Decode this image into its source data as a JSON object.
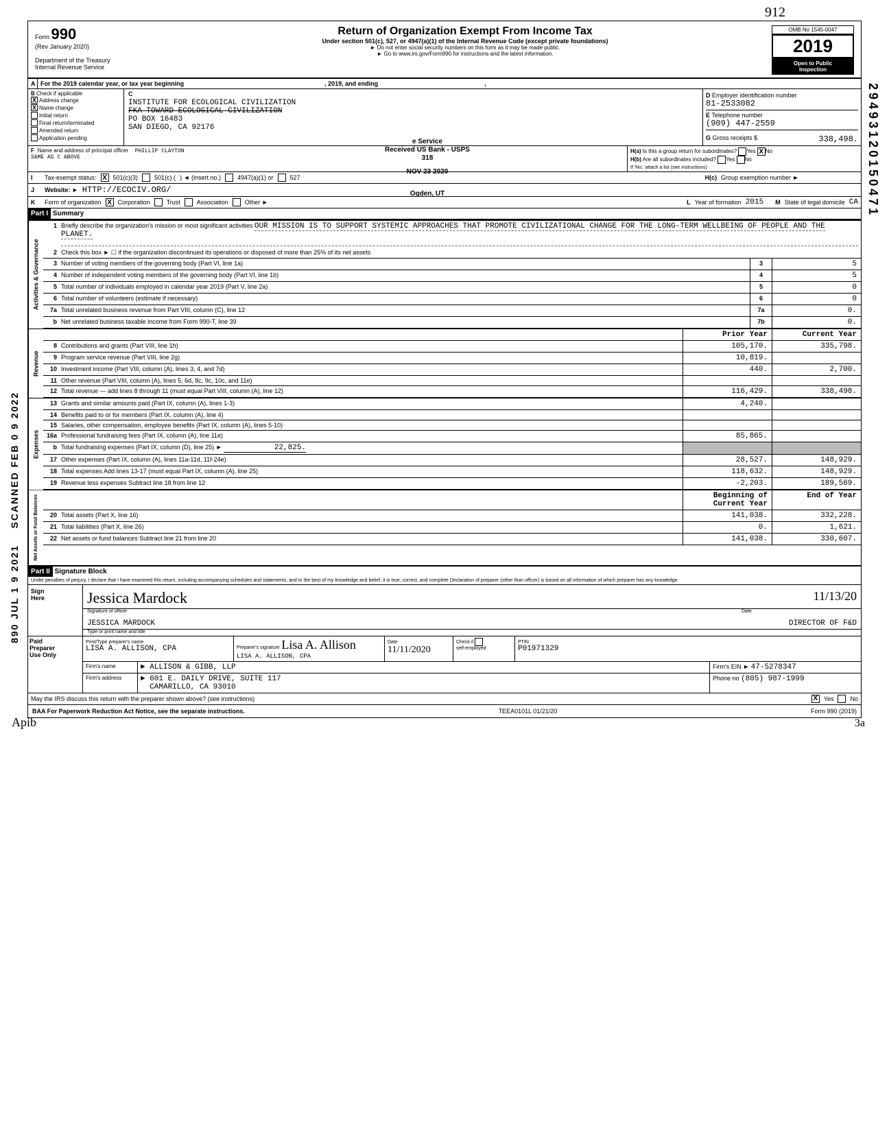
{
  "margins": {
    "side_stamp": "SCANNED FEB 0 9 2022",
    "side_stamp2": "890 JUL 1 9 2021",
    "side_num": "29493120150471",
    "top_hand": "912",
    "bottom_scribble": "Apib",
    "page_num": "3a"
  },
  "header": {
    "form_prefix": "Form",
    "form_number": "990",
    "rev": "(Rev January 2020)",
    "dept": "Department of the Treasury",
    "irs": "Internal Revenue Service",
    "title": "Return of Organization Exempt From Income Tax",
    "subtitle": "Under section 501(c), 527, or 4947(a)(1) of the Internal Revenue Code (except private foundations)",
    "note1": "► Do not enter social security numbers on this form as it may be made public.",
    "note2": "► Go to www.irs.gov/Form990 for instructions and the latest information.",
    "omb": "OMB No 1545-0047",
    "year": "2019",
    "public1": "Open to Public",
    "public2": "Inspection"
  },
  "row_a": {
    "label": "A",
    "text": "For the 2019 calendar year, or tax year beginning",
    "mid": ", 2019, and ending",
    "end": ","
  },
  "stamp": {
    "l1": "e Service",
    "l2": "Received US Bank - USPS",
    "l3": "318",
    "l4": "NOV 23 2020",
    "l5": "Ogden, UT"
  },
  "col_b": {
    "label": "B",
    "title": "Check if applicable",
    "opts": [
      {
        "label": "Address change",
        "checked": "X"
      },
      {
        "label": "Name change",
        "checked": "X"
      },
      {
        "label": "Initial return",
        "checked": ""
      },
      {
        "label": "Final return/terminated",
        "checked": ""
      },
      {
        "label": "Amended return",
        "checked": ""
      },
      {
        "label": "Application pending",
        "checked": ""
      }
    ]
  },
  "col_c": {
    "label": "C",
    "name": "INSTITUTE FOR ECOLOGICAL CIVILIZATION",
    "fka": "FKA TOWARD ECOLOGICAL CIVILIZATION",
    "addr1": "PO BOX 16483",
    "city": "SAN DIEGO, CA 92176"
  },
  "col_d": {
    "label": "D",
    "title": "Employer identification number",
    "value": "81-2533082"
  },
  "col_e": {
    "label": "E",
    "title": "Telephone number",
    "value": "(909) 447-2559"
  },
  "col_g": {
    "label": "G",
    "title": "Gross receipts $",
    "value": "338,498."
  },
  "row_f": {
    "label": "F",
    "title": "Name and address of principal officer",
    "name": "PHILLIP CLAYTON",
    "addr": "SAME AS C ABOVE"
  },
  "row_h": {
    "a_label": "H(a)",
    "a_text": "Is this a group return for subordinates?",
    "a_yes": "Yes",
    "a_no": "No",
    "a_no_checked": "X",
    "b_label": "H(b)",
    "b_text": "Are all subordinates included?",
    "b_note": "If 'No,' attach a list (see instructions)",
    "c_label": "H(c)",
    "c_text": "Group exemption number ►"
  },
  "row_i": {
    "label": "I",
    "title": "Tax-exempt status:",
    "opt1_checked": "X",
    "opt1": "501(c)(3)",
    "opt2": "501(c) (",
    "opt2_suffix": ") ◄  (insert no.)",
    "opt3": "4947(a)(1) or",
    "opt4": "527"
  },
  "row_j": {
    "label": "J",
    "title": "Website: ►",
    "value": "HTTP://ECOCIV.ORG/"
  },
  "row_k": {
    "label": "K",
    "title": "Form of organization",
    "opt1_checked": "X",
    "opt1": "Corporation",
    "opt2": "Trust",
    "opt3": "Association",
    "opt4": "Other ►",
    "l_label": "L",
    "l_text": "Year of formation",
    "l_value": "2015",
    "m_label": "M",
    "m_text": "State of legal domicile",
    "m_value": "CA"
  },
  "part1": {
    "label": "Part I",
    "title": "Summary"
  },
  "mission": {
    "num": "1",
    "label": "Briefly describe the organization's mission or most significant activities",
    "text": "OUR MISSION IS TO SUPPORT SYSTEMIC APPROACHES THAT PROMOTE CIVILIZATIONAL CHANGE FOR THE LONG-TERM WELLBEING OF PEOPLE AND THE PLANET."
  },
  "gov_rows": [
    {
      "n": "2",
      "d": "Check this box ►  ☐  if the organization discontinued its operations or disposed of more than 25% of its net assets"
    },
    {
      "n": "3",
      "d": "Number of voting members of the governing body (Part VI, line 1a)",
      "c": "3",
      "v": "5"
    },
    {
      "n": "4",
      "d": "Number of independent voting members of the governing body (Part VI, line 1b)",
      "c": "4",
      "v": "5"
    },
    {
      "n": "5",
      "d": "Total number of individuals employed in calendar year 2019 (Part V, line 2a)",
      "c": "5",
      "v": "0"
    },
    {
      "n": "6",
      "d": "Total number of volunteers (estimate if necessary)",
      "c": "6",
      "v": "0"
    },
    {
      "n": "7a",
      "d": "Total unrelated business revenue from Part VIII, column (C), line 12",
      "c": "7a",
      "v": "0."
    },
    {
      "n": "b",
      "d": "Net unrelated business taxable income from Form 990-T, line 39",
      "c": "7b",
      "v": "0."
    }
  ],
  "col_headers": {
    "py": "Prior Year",
    "cy": "Current Year"
  },
  "rev_rows": [
    {
      "n": "8",
      "d": "Contributions and grants (Part VIII, line 1h)",
      "py": "105,170.",
      "cy": "335,798."
    },
    {
      "n": "9",
      "d": "Program service revenue (Part VIII, line 2g)",
      "py": "10,819.",
      "cy": ""
    },
    {
      "n": "10",
      "d": "Investment income (Part VIII, column (A), lines 3, 4, and 7d)",
      "py": "440.",
      "cy": "2,700."
    },
    {
      "n": "11",
      "d": "Other revenue (Part VIII, column (A), lines 5, 6d, 8c, 9c, 10c, and 11e)",
      "py": "",
      "cy": ""
    },
    {
      "n": "12",
      "d": "Total revenue — add lines 8 through 11 (must equal Part VIII, column (A), line 12)",
      "py": "116,429.",
      "cy": "338,498."
    }
  ],
  "exp_rows": [
    {
      "n": "13",
      "d": "Grants and similar amounts paid (Part IX, column (A), lines 1-3)",
      "py": "4,240.",
      "cy": ""
    },
    {
      "n": "14",
      "d": "Benefits paid to or for members (Part IX, column (A), line 4)",
      "py": "",
      "cy": ""
    },
    {
      "n": "15",
      "d": "Salaries, other compensation, employee benefits (Part IX, column (A), lines 5-10)",
      "py": "",
      "cy": ""
    },
    {
      "n": "16a",
      "d": "Professional fundraising fees (Part IX, column (A), line 11e)",
      "py": "85,865.",
      "cy": ""
    }
  ],
  "exp_16b": {
    "n": "b",
    "d": "Total fundraising expenses (Part IX, column (D), line 25) ►",
    "v": "22,825."
  },
  "exp_rows2": [
    {
      "n": "17",
      "d": "Other expenses (Part IX, column (A), lines 11a-11d, 11f-24e)",
      "py": "28,527.",
      "cy": "148,929."
    },
    {
      "n": "18",
      "d": "Total expenses  Add lines 13-17 (must equal Part IX, column (A), line 25)",
      "py": "118,632.",
      "cy": "148,929."
    },
    {
      "n": "19",
      "d": "Revenue less expenses  Subtract line 18 from line 12",
      "py": "-2,203.",
      "cy": "189,569."
    }
  ],
  "na_headers": {
    "py": "Beginning of Current Year",
    "cy": "End of Year"
  },
  "na_rows": [
    {
      "n": "20",
      "d": "Total assets (Part X, line 16)",
      "py": "141,038.",
      "cy": "332,228."
    },
    {
      "n": "21",
      "d": "Total liabilities (Part X, line 26)",
      "py": "0.",
      "cy": "1,621."
    },
    {
      "n": "22",
      "d": "Net assets or fund balances  Subtract line 21 from line 20",
      "py": "141,038.",
      "cy": "330,607."
    }
  ],
  "sides": {
    "gov": "Activities & Governance",
    "rev": "Revenue",
    "exp": "Expenses",
    "na": "Net Assets or Fund Balances"
  },
  "part2": {
    "label": "Part II",
    "title": "Signature Block"
  },
  "perjury": "Under penalties of perjury, I declare that I have examined this return, including accompanying schedules and statements, and to the best of my knowledge and belief, it is true, correct, and complete  Declaration of preparer (other than officer) is based on all information of which preparer has any knowledge",
  "sign": {
    "left1": "Sign",
    "left2": "Here",
    "sig_label": "Signature of officer",
    "date_label": "Date",
    "date": "11/13/20",
    "name": "JESSICA MARDOCK",
    "title": "DIRECTOR OF F&D",
    "name_label": "Type or print name and title"
  },
  "prep": {
    "left1": "Paid",
    "left2": "Preparer",
    "left3": "Use Only",
    "r1": {
      "c1_label": "Print/Type preparer's name",
      "c1": "LISA A. ALLISON, CPA",
      "c2_label": "Preparer's signature",
      "c2": "Lisa A. Allison",
      "c2b": "LISA A. ALLISON, CPA",
      "c3_label": "Date",
      "c3": "11/11/2020",
      "c4_label": "Check         if",
      "c4_label2": "self-employed",
      "c5_label": "PTIN",
      "c5": "P01971329"
    },
    "r2": {
      "label": "Firm's name",
      "arrow": "►",
      "value": "ALLISON & GIBB, LLP",
      "ein_label": "Firm's EIN ►",
      "ein": "47-5278347"
    },
    "r3": {
      "label": "Firm's address",
      "arrow": "►",
      "value1": "601 E. DAILY DRIVE,  SUITE 117",
      "value2": "CAMARILLO, CA 93010",
      "phone_label": "Phone no",
      "phone": "(805) 987-1999"
    }
  },
  "discuss": {
    "text": "May the IRS discuss this return with the preparer shown above? (see instructions)",
    "yes_checked": "X",
    "yes": "Yes",
    "no": "No"
  },
  "footer": {
    "left": "BAA  For Paperwork Reduction Act Notice, see the separate instructions.",
    "mid": "TEEA0101L 01/21/20",
    "right": "Form 990 (2019)"
  }
}
